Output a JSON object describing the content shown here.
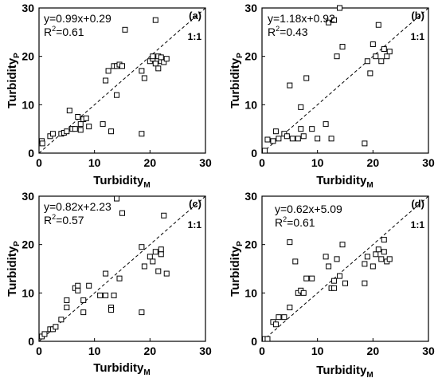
{
  "chart_data": [
    {
      "type": "scatter",
      "panel_label": "(a)",
      "equation": "y=0.99x+0.29",
      "r2_base": "R",
      "r2_sup": "2",
      "r2_rest": "=0.61",
      "ratio_label": "1:1",
      "xlabel_base": "Turbidity",
      "xlabel_sub": "M",
      "ylabel_base": "Turbidity",
      "ylabel_sub": "P",
      "xlim": [
        0,
        30
      ],
      "ylim": [
        0,
        30
      ],
      "xticks": [
        "0",
        "10",
        "20",
        "30"
      ],
      "yticks": [
        "0",
        "10",
        "20",
        "30"
      ],
      "points": [
        [
          0.5,
          2.5
        ],
        [
          0.6,
          2.0
        ],
        [
          2.0,
          3.5
        ],
        [
          2.5,
          4.0
        ],
        [
          4.0,
          4.0
        ],
        [
          4.5,
          4.2
        ],
        [
          5.0,
          4.5
        ],
        [
          5.5,
          8.8
        ],
        [
          6.0,
          5.0
        ],
        [
          6.5,
          5.0
        ],
        [
          7.0,
          7.5
        ],
        [
          7.5,
          6.0
        ],
        [
          7.5,
          4.8
        ],
        [
          8.0,
          7.0
        ],
        [
          8.5,
          7.2
        ],
        [
          9.0,
          5.5
        ],
        [
          11.5,
          6.0
        ],
        [
          12.0,
          15.0
        ],
        [
          12.5,
          17.0
        ],
        [
          13.0,
          4.5
        ],
        [
          13.5,
          18.0
        ],
        [
          14.0,
          18.0
        ],
        [
          14.0,
          12.0
        ],
        [
          14.5,
          18.3
        ],
        [
          15.0,
          18.0
        ],
        [
          15.5,
          25.5
        ],
        [
          18.5,
          17.0
        ],
        [
          18.5,
          4.0
        ],
        [
          19.0,
          15.5
        ],
        [
          20.0,
          19.0
        ],
        [
          20.5,
          19.5
        ],
        [
          20.5,
          20.0
        ],
        [
          21.0,
          27.5
        ],
        [
          21.0,
          18.5
        ],
        [
          21.5,
          17.5
        ],
        [
          21.5,
          20.0
        ],
        [
          22.0,
          19.0
        ],
        [
          22.0,
          19.8
        ],
        [
          22.5,
          18.8
        ],
        [
          23.0,
          19.5
        ]
      ]
    },
    {
      "type": "scatter",
      "panel_label": "(b)",
      "equation": "y=1.18x+0.92",
      "r2_base": "R",
      "r2_sup": "2",
      "r2_rest": "=0.43",
      "ratio_label": "1:1",
      "xlabel_base": "Turbidity",
      "xlabel_sub": "M",
      "ylabel_base": "Turbidity",
      "ylabel_sub": "P",
      "xlim": [
        0,
        30
      ],
      "ylim": [
        0,
        30
      ],
      "xticks": [
        "0",
        "10",
        "20",
        "30"
      ],
      "yticks": [
        "0",
        "10",
        "20",
        "30"
      ],
      "points": [
        [
          0.5,
          0.5
        ],
        [
          1.0,
          2.8
        ],
        [
          2.0,
          2.5
        ],
        [
          2.5,
          4.5
        ],
        [
          3.0,
          3.0
        ],
        [
          4.0,
          4.0
        ],
        [
          4.5,
          3.5
        ],
        [
          5.0,
          14.0
        ],
        [
          5.5,
          3.0
        ],
        [
          6.5,
          3.0
        ],
        [
          7.0,
          5.0
        ],
        [
          7.0,
          9.5
        ],
        [
          7.5,
          3.5
        ],
        [
          8.0,
          15.5
        ],
        [
          9.0,
          5.0
        ],
        [
          10.0,
          3.0
        ],
        [
          11.5,
          6.0
        ],
        [
          12.0,
          27.0
        ],
        [
          12.5,
          3.0
        ],
        [
          13.0,
          27.5
        ],
        [
          13.5,
          20.0
        ],
        [
          14.0,
          30.0
        ],
        [
          14.5,
          22.0
        ],
        [
          18.5,
          2.0
        ],
        [
          19.0,
          19.0
        ],
        [
          19.5,
          16.5
        ],
        [
          20.0,
          22.5
        ],
        [
          20.5,
          20.0
        ],
        [
          21.0,
          26.5
        ],
        [
          21.5,
          19.0
        ],
        [
          22.0,
          21.5
        ],
        [
          22.5,
          20.0
        ],
        [
          23.0,
          21.0
        ]
      ]
    },
    {
      "type": "scatter",
      "panel_label": "(c)",
      "equation": "y=0.82x+2.23",
      "r2_base": "R",
      "r2_sup": "2",
      "r2_rest": "=0.57",
      "ratio_label": "1:1",
      "xlabel_base": "Turbidity",
      "xlabel_sub": "M",
      "ylabel_base": "Turbidity",
      "ylabel_sub": "P",
      "xlim": [
        0,
        30
      ],
      "ylim": [
        0,
        30
      ],
      "xticks": [
        "0",
        "10",
        "20",
        "30"
      ],
      "yticks": [
        "0",
        "10",
        "20",
        "30"
      ],
      "points": [
        [
          0.5,
          1.0
        ],
        [
          1.0,
          1.5
        ],
        [
          2.0,
          2.5
        ],
        [
          2.5,
          2.5
        ],
        [
          3.0,
          3.0
        ],
        [
          4.0,
          4.5
        ],
        [
          5.0,
          8.5
        ],
        [
          5.0,
          7.0
        ],
        [
          6.5,
          11.0
        ],
        [
          7.0,
          11.5
        ],
        [
          7.0,
          10.5
        ],
        [
          8.0,
          8.5
        ],
        [
          8.0,
          6.0
        ],
        [
          9.0,
          11.5
        ],
        [
          11.0,
          9.5
        ],
        [
          12.0,
          9.5
        ],
        [
          12.0,
          14.0
        ],
        [
          13.0,
          7.0
        ],
        [
          13.0,
          6.5
        ],
        [
          13.5,
          9.5
        ],
        [
          14.0,
          29.5
        ],
        [
          14.5,
          13.0
        ],
        [
          15.0,
          26.5
        ],
        [
          18.5,
          6.0
        ],
        [
          18.5,
          19.5
        ],
        [
          19.0,
          15.5
        ],
        [
          20.0,
          17.5
        ],
        [
          20.5,
          16.5
        ],
        [
          21.0,
          18.5
        ],
        [
          21.5,
          14.5
        ],
        [
          22.0,
          19.0
        ],
        [
          22.0,
          18.0
        ],
        [
          22.5,
          26.0
        ],
        [
          23.0,
          14.0
        ]
      ]
    },
    {
      "type": "scatter",
      "panel_label": "(d)",
      "equation": "y=0.62x+5.09",
      "r2_base": "R",
      "r2_sup": "2",
      "r2_rest": "=0.61",
      "ratio_label": "1:1",
      "xlabel_base": "Turbidity",
      "xlabel_sub": "M",
      "ylabel_base": "Turbidity",
      "ylabel_sub": "P",
      "xlim": [
        0,
        30
      ],
      "ylim": [
        0,
        30
      ],
      "xticks": [
        "0",
        "10",
        "20",
        "30"
      ],
      "yticks": [
        "0",
        "10",
        "20",
        "30"
      ],
      "points": [
        [
          0.5,
          0.5
        ],
        [
          1.0,
          0.5
        ],
        [
          2.0,
          4.0
        ],
        [
          2.5,
          3.5
        ],
        [
          3.0,
          5.0
        ],
        [
          4.0,
          5.0
        ],
        [
          5.0,
          20.5
        ],
        [
          5.0,
          7.0
        ],
        [
          6.0,
          16.5
        ],
        [
          6.5,
          10.0
        ],
        [
          7.0,
          10.5
        ],
        [
          7.5,
          10.0
        ],
        [
          8.0,
          13.0
        ],
        [
          9.0,
          13.0
        ],
        [
          11.5,
          17.5
        ],
        [
          12.0,
          15.5
        ],
        [
          12.5,
          11.0
        ],
        [
          13.0,
          12.5
        ],
        [
          13.0,
          11.0
        ],
        [
          13.5,
          17.0
        ],
        [
          14.0,
          13.5
        ],
        [
          14.5,
          20.0
        ],
        [
          15.0,
          12.0
        ],
        [
          18.5,
          16.0
        ],
        [
          18.5,
          12.0
        ],
        [
          19.0,
          17.5
        ],
        [
          20.0,
          15.5
        ],
        [
          20.5,
          18.0
        ],
        [
          21.0,
          19.0
        ],
        [
          21.5,
          17.0
        ],
        [
          22.0,
          21.0
        ],
        [
          22.0,
          18.5
        ],
        [
          22.5,
          16.5
        ],
        [
          23.0,
          17.0
        ]
      ]
    }
  ]
}
